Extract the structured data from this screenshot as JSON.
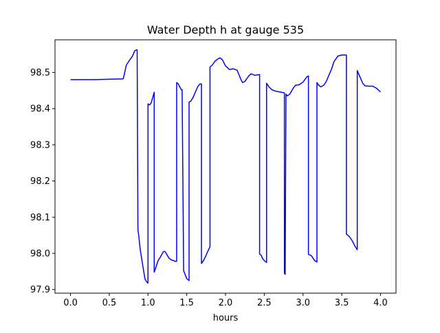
{
  "chart_data": {
    "type": "line",
    "title": "Water Depth h at gauge 535",
    "xlabel": "hours",
    "ylabel": "",
    "xlim": [
      -0.2,
      4.2
    ],
    "ylim": [
      97.89,
      98.59
    ],
    "xticks": [
      0.0,
      0.5,
      1.0,
      1.5,
      2.0,
      2.5,
      3.0,
      3.5,
      4.0
    ],
    "xtick_labels": [
      "0.0",
      "0.5",
      "1.0",
      "1.5",
      "2.0",
      "2.5",
      "3.0",
      "3.5",
      "4.0"
    ],
    "yticks": [
      97.9,
      98.0,
      98.1,
      98.2,
      98.3,
      98.4,
      98.5
    ],
    "ytick_labels": [
      "97.9",
      "98.0",
      "98.1",
      "98.2",
      "98.3",
      "98.4",
      "98.5"
    ],
    "grid": false,
    "series": [
      {
        "color": "#0000ff",
        "x": [
          0.0,
          0.3,
          0.68,
          0.7,
          0.72,
          0.75,
          0.8,
          0.83,
          0.85,
          0.86,
          0.87,
          0.88,
          0.9,
          0.93,
          0.96,
          0.98,
          1.0,
          1.0,
          1.02,
          1.04,
          1.06,
          1.08,
          1.08,
          1.1,
          1.13,
          1.16,
          1.2,
          1.22,
          1.24,
          1.27,
          1.3,
          1.33,
          1.35,
          1.37,
          1.37,
          1.39,
          1.41,
          1.43,
          1.44,
          1.46,
          1.5,
          1.53,
          1.53,
          1.55,
          1.58,
          1.61,
          1.64,
          1.67,
          1.69,
          1.69,
          1.71,
          1.74,
          1.77,
          1.8,
          1.8,
          1.83,
          1.86,
          1.9,
          1.93,
          1.96,
          2.0,
          2.05,
          2.1,
          2.15,
          2.2,
          2.22,
          2.25,
          2.3,
          2.33,
          2.38,
          2.44,
          2.44,
          2.46,
          2.48,
          2.51,
          2.53,
          2.53,
          2.56,
          2.6,
          2.65,
          2.7,
          2.75,
          2.76,
          2.76,
          2.77,
          2.78,
          2.78,
          2.8,
          2.83,
          2.87,
          2.9,
          2.95,
          3.0,
          3.05,
          3.07,
          3.07,
          3.1,
          3.12,
          3.15,
          3.18,
          3.18,
          3.2,
          3.23,
          3.27,
          3.3,
          3.33,
          3.37,
          3.4,
          3.45,
          3.5,
          3.56,
          3.56,
          3.58,
          3.61,
          3.64,
          3.67,
          3.7,
          3.7,
          3.73,
          3.77,
          3.8,
          3.85,
          3.9,
          3.95,
          4.0
        ],
        "y": [
          98.48,
          98.48,
          98.482,
          98.5,
          98.52,
          98.53,
          98.545,
          98.56,
          98.562,
          98.562,
          98.065,
          98.05,
          98.01,
          97.97,
          97.93,
          97.922,
          97.918,
          98.413,
          98.41,
          98.415,
          98.43,
          98.445,
          97.948,
          97.96,
          97.98,
          97.99,
          98.005,
          98.005,
          97.998,
          97.987,
          97.982,
          97.98,
          97.978,
          97.978,
          98.472,
          98.468,
          98.46,
          98.452,
          98.452,
          97.952,
          97.93,
          97.925,
          98.418,
          98.42,
          98.43,
          98.445,
          98.46,
          98.468,
          98.468,
          97.972,
          97.978,
          97.99,
          98.005,
          98.018,
          98.515,
          98.52,
          98.53,
          98.537,
          98.54,
          98.535,
          98.518,
          98.508,
          98.51,
          98.506,
          98.48,
          98.472,
          98.475,
          98.49,
          98.496,
          98.492,
          98.494,
          97.998,
          97.995,
          97.985,
          97.978,
          97.975,
          98.47,
          98.46,
          98.452,
          98.448,
          98.446,
          98.444,
          98.443,
          97.945,
          97.942,
          98.44,
          98.44,
          98.435,
          98.44,
          98.455,
          98.464,
          98.466,
          98.473,
          98.488,
          98.49,
          97.997,
          97.995,
          97.99,
          97.98,
          97.976,
          98.472,
          98.465,
          98.46,
          98.465,
          98.475,
          98.49,
          98.51,
          98.53,
          98.545,
          98.548,
          98.548,
          98.053,
          98.05,
          98.043,
          98.033,
          98.02,
          98.01,
          98.505,
          98.49,
          98.47,
          98.463,
          98.462,
          98.462,
          98.456,
          98.446
        ]
      }
    ]
  }
}
